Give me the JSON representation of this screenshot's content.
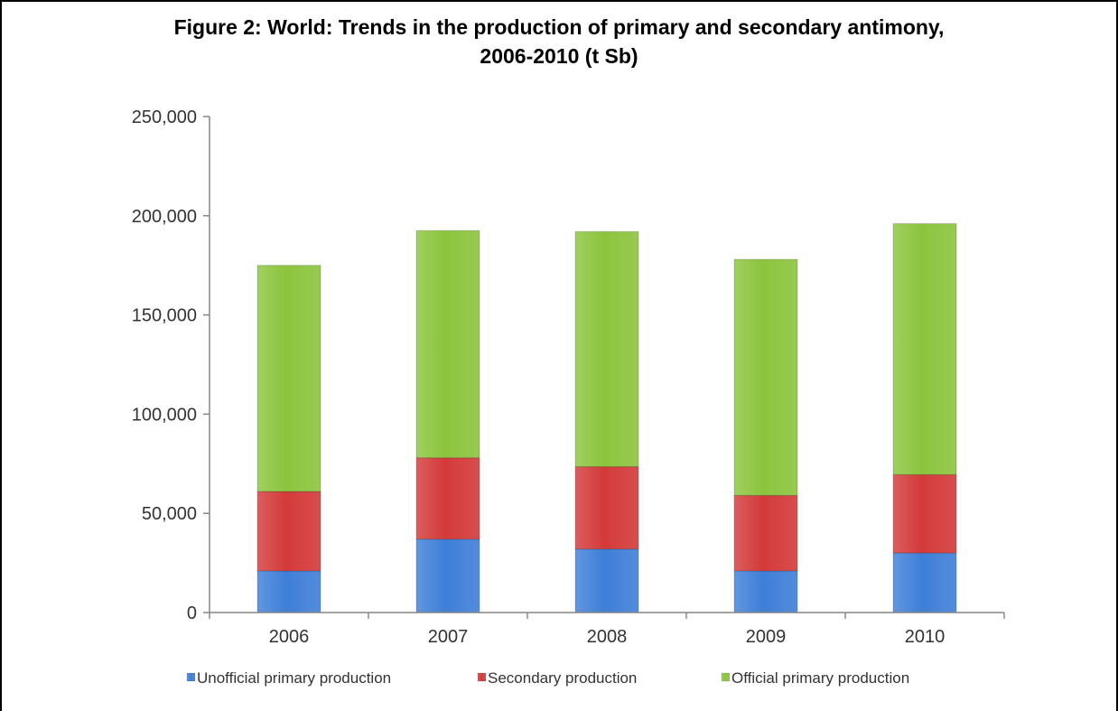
{
  "chart_data": {
    "type": "bar",
    "stacked": true,
    "title": "Figure 2: World: Trends in the production of primary and secondary antimony, 2006-2010 (t Sb)",
    "title_lines": [
      "Figure 2: World: Trends in the production of primary and secondary antimony,",
      "2006-2010 (t Sb)"
    ],
    "categories": [
      "2006",
      "2007",
      "2008",
      "2009",
      "2010"
    ],
    "series": [
      {
        "name": "Unofficial primary production",
        "color": "#3f7fd8",
        "values": [
          21000,
          37000,
          32000,
          21000,
          30000
        ]
      },
      {
        "name": "Secondary production",
        "color": "#d43a3a",
        "values": [
          40000,
          41000,
          41500,
          38000,
          39500
        ]
      },
      {
        "name": "Official primary production",
        "color": "#8cc43e",
        "values": [
          114000,
          114500,
          118500,
          119000,
          126500
        ]
      }
    ],
    "ylim": [
      0,
      250000
    ],
    "yticks": [
      "0",
      "50,000",
      "100,000",
      "150,000",
      "200,000",
      "250,000"
    ],
    "ytick_values": [
      0,
      50000,
      100000,
      150000,
      200000,
      250000
    ],
    "xlabel": "",
    "ylabel": "",
    "grid": false,
    "legend_position": "bottom"
  }
}
